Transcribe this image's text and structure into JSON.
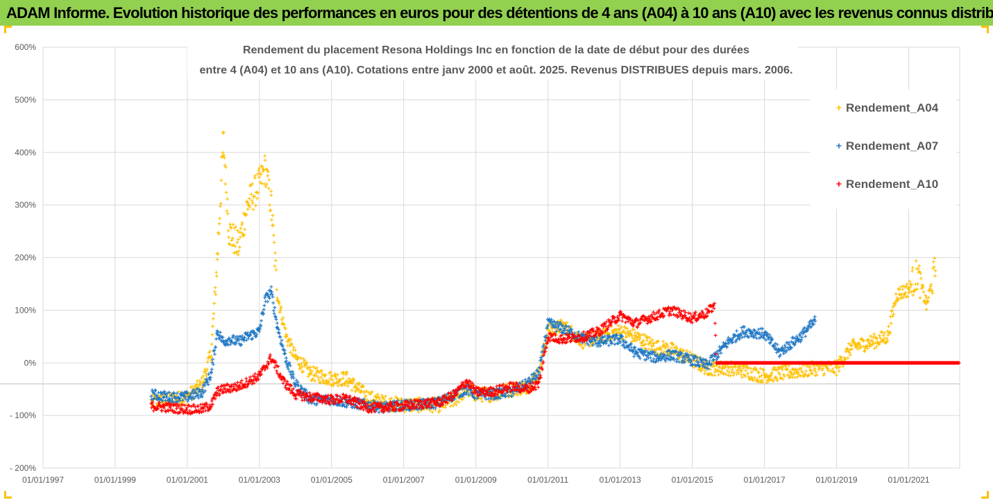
{
  "header": {
    "title": "ADAM Informe. Evolution historique des performances en euros pour des détentions de 4 ans (A04) à 10 ans (A10) avec les revenus connus distribués"
  },
  "colors": {
    "banner": "#92d050",
    "frame_accent": "#ffc000",
    "A04": "#ffc000",
    "A07": "#1f77c4",
    "A10": "#ff0000",
    "grid": "#d9d9d9",
    "axis_text": "#595959"
  },
  "chart_data": {
    "type": "scatter",
    "title_line1": "Rendement du placement Resona Holdings Inc en fonction de la date de début pour des durées",
    "title_line2": "entre 4 (A04) et 10 ans (A10). Cotations entre janv 2000 et août. 2025. Revenus DISTRIBUES depuis mars. 2006.",
    "x_type": "date",
    "xlim": [
      "1997-01-01",
      "2022-06-01"
    ],
    "ylim": [
      -200,
      600
    ],
    "y_unit": "%",
    "y_ticks": [
      "600%",
      "500%",
      "400%",
      "300%",
      "200%",
      "100%",
      "0%",
      "- 100%",
      "- 200%"
    ],
    "y_tick_values": [
      600,
      500,
      400,
      300,
      200,
      100,
      0,
      -100,
      -200
    ],
    "x_ticks": [
      "01/01/1997",
      "01/01/1999",
      "01/01/2001",
      "01/01/2003",
      "01/01/2005",
      "01/01/2007",
      "01/01/2009",
      "01/01/2011",
      "01/01/2013",
      "01/01/2015",
      "01/01/2017",
      "01/01/2019",
      "01/01/2021"
    ],
    "x_tick_dates": [
      "1997-01-01",
      "1999-01-01",
      "2001-01-01",
      "2003-01-01",
      "2005-01-01",
      "2007-01-01",
      "2009-01-01",
      "2011-01-01",
      "2013-01-01",
      "2015-01-01",
      "2017-01-01",
      "2019-01-01",
      "2021-01-01"
    ],
    "grid": true,
    "marker": "+",
    "legend_position": "right",
    "series": [
      {
        "name": "Rendement_A04",
        "x": [
          "2000-01-01",
          "2000-07-01",
          "2001-01-01",
          "2001-06-01",
          "2001-09-01",
          "2001-11-01",
          "2002-01-01",
          "2002-03-01",
          "2002-06-01",
          "2002-09-01",
          "2003-01-01",
          "2003-03-01",
          "2003-05-01",
          "2003-07-01",
          "2003-10-01",
          "2004-01-01",
          "2004-06-01",
          "2005-01-01",
          "2005-06-01",
          "2006-01-01",
          "2006-06-01",
          "2007-01-01",
          "2007-06-01",
          "2008-01-01",
          "2008-06-01",
          "2008-10-01",
          "2009-01-01",
          "2009-06-01",
          "2010-01-01",
          "2010-06-01",
          "2010-10-01",
          "2011-01-01",
          "2011-06-01",
          "2012-01-01",
          "2012-06-01",
          "2013-01-01",
          "2013-06-01",
          "2014-01-01",
          "2014-06-01",
          "2015-01-01",
          "2015-06-01",
          "2016-01-01",
          "2016-06-01",
          "2017-01-01",
          "2017-06-01",
          "2018-01-01",
          "2018-06-01",
          "2019-01-01",
          "2019-06-01",
          "2020-01-01",
          "2020-06-01",
          "2020-09-01",
          "2021-01-01",
          "2021-04-01",
          "2021-07-01",
          "2021-10-01"
        ],
        "values": [
          -75,
          -70,
          -65,
          -40,
          20,
          200,
          420,
          250,
          220,
          300,
          340,
          370,
          300,
          130,
          50,
          10,
          -20,
          -30,
          -30,
          -65,
          -75,
          -80,
          -80,
          -80,
          -70,
          -50,
          -60,
          -60,
          -50,
          -45,
          -20,
          60,
          70,
          40,
          50,
          60,
          50,
          30,
          25,
          5,
          -10,
          -10,
          -15,
          -25,
          -20,
          -15,
          -10,
          -10,
          30,
          40,
          50,
          130,
          140,
          170,
          110,
          180
        ],
        "noise": 14
      },
      {
        "name": "Rendement_A07",
        "x": [
          "2000-01-01",
          "2000-07-01",
          "2001-01-01",
          "2001-06-01",
          "2001-09-01",
          "2001-11-01",
          "2002-01-01",
          "2002-03-01",
          "2002-06-01",
          "2002-09-01",
          "2003-01-01",
          "2003-03-01",
          "2003-05-01",
          "2003-07-01",
          "2003-10-01",
          "2004-01-01",
          "2004-06-01",
          "2005-01-01",
          "2005-06-01",
          "2006-01-01",
          "2006-06-01",
          "2007-01-01",
          "2007-06-01",
          "2008-01-01",
          "2008-06-01",
          "2008-10-01",
          "2009-01-01",
          "2009-06-01",
          "2010-01-01",
          "2010-06-01",
          "2010-10-01",
          "2011-01-01",
          "2011-06-01",
          "2012-01-01",
          "2012-06-01",
          "2013-01-01",
          "2013-06-01",
          "2014-01-01",
          "2014-06-01",
          "2015-01-01",
          "2015-06-01",
          "2016-01-01",
          "2016-06-01",
          "2017-01-01",
          "2017-06-01",
          "2018-01-01",
          "2018-06-01"
        ],
        "values": [
          -60,
          -65,
          -65,
          -55,
          -20,
          60,
          40,
          45,
          40,
          50,
          60,
          120,
          135,
          70,
          5,
          -40,
          -70,
          -70,
          -75,
          -80,
          -85,
          -80,
          -80,
          -75,
          -60,
          -50,
          -60,
          -60,
          -55,
          -40,
          -20,
          75,
          65,
          45,
          40,
          45,
          20,
          10,
          15,
          5,
          -5,
          40,
          60,
          55,
          20,
          50,
          80
        ],
        "noise": 10
      },
      {
        "name": "Rendement_A10",
        "x": [
          "2000-01-01",
          "2000-07-01",
          "2001-01-01",
          "2001-06-01",
          "2001-09-01",
          "2001-11-01",
          "2002-01-01",
          "2002-06-01",
          "2003-01-01",
          "2003-05-01",
          "2003-09-01",
          "2004-01-01",
          "2004-06-01",
          "2005-01-01",
          "2005-06-01",
          "2006-01-01",
          "2006-06-01",
          "2007-01-01",
          "2007-06-01",
          "2008-01-01",
          "2008-06-01",
          "2008-10-01",
          "2009-01-01",
          "2009-06-01",
          "2010-01-01",
          "2010-06-01",
          "2010-10-01",
          "2011-01-01",
          "2011-06-01",
          "2012-01-01",
          "2012-06-01",
          "2013-01-01",
          "2013-06-01",
          "2014-01-01",
          "2014-06-01",
          "2015-01-01",
          "2015-06-01",
          "2015-08-15",
          "2015-09-01",
          "2022-06-01"
        ],
        "values": [
          -82,
          -85,
          -88,
          -88,
          -80,
          -55,
          -50,
          -45,
          -25,
          10,
          -35,
          -60,
          -65,
          -70,
          -68,
          -85,
          -85,
          -82,
          -78,
          -75,
          -60,
          -35,
          -55,
          -55,
          -45,
          -50,
          -40,
          50,
          45,
          50,
          60,
          90,
          75,
          90,
          100,
          85,
          95,
          110,
          0,
          0
        ],
        "noise": 9
      }
    ]
  }
}
